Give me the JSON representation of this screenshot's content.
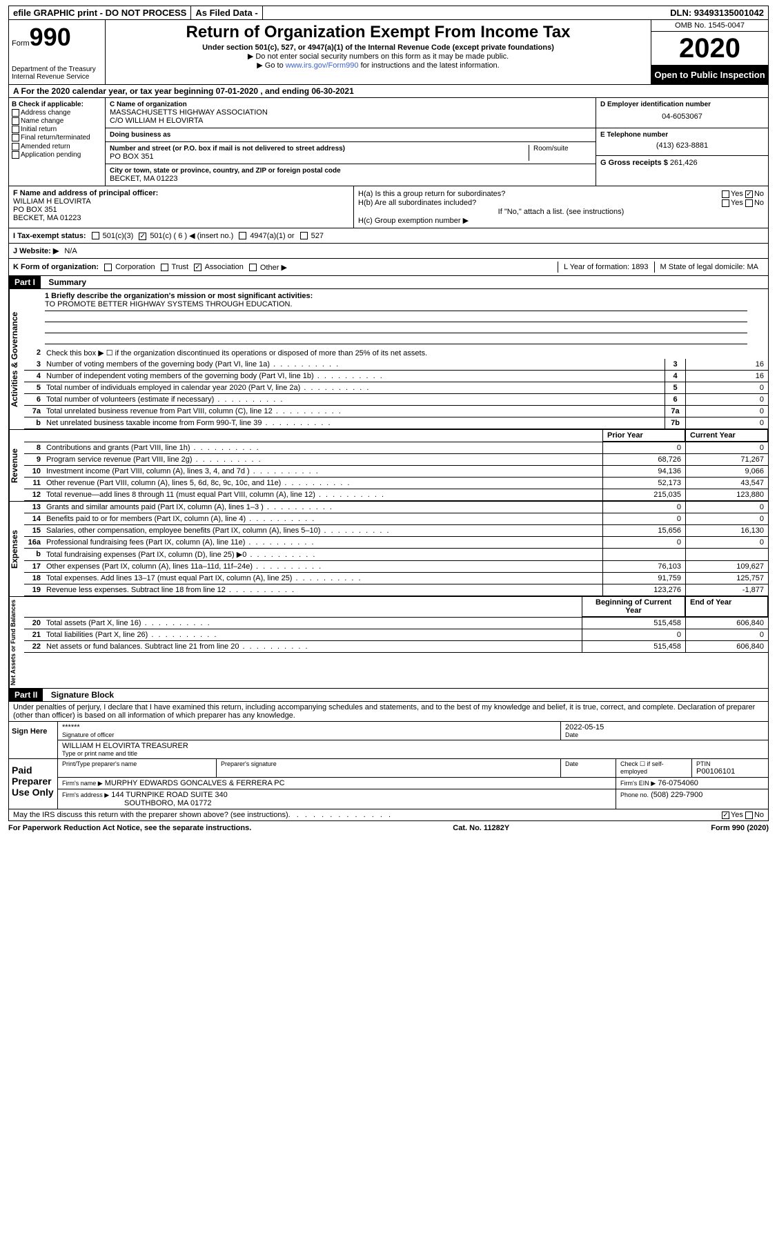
{
  "top": {
    "efile": "efile GRAPHIC print - DO NOT PROCESS",
    "asfiled": "As Filed Data -",
    "dln": "DLN: 93493135001042"
  },
  "header": {
    "form_label": "Form",
    "form_num": "990",
    "dept": "Department of the Treasury\nInternal Revenue Service",
    "title": "Return of Organization Exempt From Income Tax",
    "sub1": "Under section 501(c), 527, or 4947(a)(1) of the Internal Revenue Code (except private foundations)",
    "sub2": "▶ Do not enter social security numbers on this form as it may be made public.",
    "sub3_pre": "▶ Go to ",
    "sub3_link": "www.irs.gov/Form990",
    "sub3_post": " for instructions and the latest information.",
    "omb": "OMB No. 1545-0047",
    "year": "2020",
    "otp": "Open to Public Inspection"
  },
  "a": "A  For the 2020 calendar year, or tax year beginning 07-01-2020  , and ending 06-30-2021",
  "b": {
    "label": "B Check if applicable:",
    "items": [
      "Address change",
      "Name change",
      "Initial return",
      "Final return/terminated",
      "Amended return",
      "Application pending"
    ]
  },
  "c": {
    "label": "C Name of organization",
    "name": "MASSACHUSETTS HIGHWAY ASSOCIATION",
    "co": "C/O WILLIAM H ELOVIRTA",
    "dba_label": "Doing business as",
    "dba": "",
    "street_label": "Number and street (or P.O. box if mail is not delivered to street address)",
    "street": "PO BOX 351",
    "room_label": "Room/suite",
    "city_label": "City or town, state or province, country, and ZIP or foreign postal code",
    "city": "BECKET, MA  01223"
  },
  "d": {
    "label": "D Employer identification number",
    "val": "04-6053067"
  },
  "e": {
    "label": "E Telephone number",
    "val": "(413) 623-8881"
  },
  "g": {
    "label": "G Gross receipts $",
    "val": "261,426"
  },
  "f": {
    "label": "F  Name and address of principal officer:",
    "name": "WILLIAM H ELOVIRTA",
    "street": "PO BOX 351",
    "city": "BECKET, MA  01223"
  },
  "h": {
    "a": "H(a)  Is this a group return for subordinates?",
    "a_yes": "Yes",
    "a_no": "No",
    "b": "H(b)  Are all subordinates included?",
    "b_yes": "Yes",
    "b_no": "No",
    "b_note": "If \"No,\" attach a list. (see instructions)",
    "c": "H(c)  Group exemption number ▶"
  },
  "i": {
    "label": "I  Tax-exempt status:",
    "opts": [
      "501(c)(3)",
      "501(c) ( 6 ) ◀ (insert no.)",
      "4947(a)(1) or",
      "527"
    ],
    "checked": 1
  },
  "j": {
    "label": "J  Website: ▶",
    "val": "N/A"
  },
  "k": {
    "label": "K Form of organization:",
    "opts": [
      "Corporation",
      "Trust",
      "Association",
      "Other ▶"
    ],
    "checked": 2,
    "l": "L Year of formation: 1893",
    "m": "M State of legal domicile: MA"
  },
  "part1": {
    "hdr": "Part I",
    "title": "Summary",
    "q1": "1 Briefly describe the organization's mission or most significant activities:",
    "mission": "TO PROMOTE BETTER HIGHWAY SYSTEMS THROUGH EDUCATION.",
    "q2": "Check this box ▶ ☐ if the organization discontinued its operations or disposed of more than 25% of its net assets.",
    "lines_ag": [
      {
        "n": "3",
        "t": "Number of voting members of the governing body (Part VI, line 1a)",
        "c": "3",
        "v": "16"
      },
      {
        "n": "4",
        "t": "Number of independent voting members of the governing body (Part VI, line 1b)",
        "c": "4",
        "v": "16"
      },
      {
        "n": "5",
        "t": "Total number of individuals employed in calendar year 2020 (Part V, line 2a)",
        "c": "5",
        "v": "0"
      },
      {
        "n": "6",
        "t": "Total number of volunteers (estimate if necessary)",
        "c": "6",
        "v": "0"
      },
      {
        "n": "7a",
        "t": "Total unrelated business revenue from Part VIII, column (C), line 12",
        "c": "7a",
        "v": "0"
      },
      {
        "n": "b",
        "t": "Net unrelated business taxable income from Form 990-T, line 39",
        "c": "7b",
        "v": "0"
      }
    ],
    "col_prior": "Prior Year",
    "col_curr": "Current Year",
    "lines_rev": [
      {
        "n": "8",
        "t": "Contributions and grants (Part VIII, line 1h)",
        "p": "0",
        "c": "0"
      },
      {
        "n": "9",
        "t": "Program service revenue (Part VIII, line 2g)",
        "p": "68,726",
        "c": "71,267"
      },
      {
        "n": "10",
        "t": "Investment income (Part VIII, column (A), lines 3, 4, and 7d )",
        "p": "94,136",
        "c": "9,066"
      },
      {
        "n": "11",
        "t": "Other revenue (Part VIII, column (A), lines 5, 6d, 8c, 9c, 10c, and 11e)",
        "p": "52,173",
        "c": "43,547"
      },
      {
        "n": "12",
        "t": "Total revenue—add lines 8 through 11 (must equal Part VIII, column (A), line 12)",
        "p": "215,035",
        "c": "123,880"
      }
    ],
    "lines_exp": [
      {
        "n": "13",
        "t": "Grants and similar amounts paid (Part IX, column (A), lines 1–3 )",
        "p": "0",
        "c": "0"
      },
      {
        "n": "14",
        "t": "Benefits paid to or for members (Part IX, column (A), line 4)",
        "p": "0",
        "c": "0"
      },
      {
        "n": "15",
        "t": "Salaries, other compensation, employee benefits (Part IX, column (A), lines 5–10)",
        "p": "15,656",
        "c": "16,130"
      },
      {
        "n": "16a",
        "t": "Professional fundraising fees (Part IX, column (A), line 11e)",
        "p": "0",
        "c": "0"
      },
      {
        "n": "b",
        "t": "Total fundraising expenses (Part IX, column (D), line 25) ▶0",
        "p": "",
        "c": ""
      },
      {
        "n": "17",
        "t": "Other expenses (Part IX, column (A), lines 11a–11d, 11f–24e)",
        "p": "76,103",
        "c": "109,627"
      },
      {
        "n": "18",
        "t": "Total expenses. Add lines 13–17 (must equal Part IX, column (A), line 25)",
        "p": "91,759",
        "c": "125,757"
      },
      {
        "n": "19",
        "t": "Revenue less expenses. Subtract line 18 from line 12",
        "p": "123,276",
        "c": "-1,877"
      }
    ],
    "col_beg": "Beginning of Current Year",
    "col_end": "End of Year",
    "lines_na": [
      {
        "n": "20",
        "t": "Total assets (Part X, line 16)",
        "p": "515,458",
        "c": "606,840"
      },
      {
        "n": "21",
        "t": "Total liabilities (Part X, line 26)",
        "p": "0",
        "c": "0"
      },
      {
        "n": "22",
        "t": "Net assets or fund balances. Subtract line 21 from line 20",
        "p": "515,458",
        "c": "606,840"
      }
    ],
    "vtabs": [
      "Activities & Governance",
      "Revenue",
      "Expenses",
      "Net Assets or Fund Balances"
    ]
  },
  "part2": {
    "hdr": "Part II",
    "title": "Signature Block",
    "decl": "Under penalties of perjury, I declare that I have examined this return, including accompanying schedules and statements, and to the best of my knowledge and belief, it is true, correct, and complete. Declaration of preparer (other than officer) is based on all information of which preparer has any knowledge.",
    "sign_here": "Sign Here",
    "sig_stars": "******",
    "sig_officer": "Signature of officer",
    "sig_date": "2022-05-15",
    "sig_date_lbl": "Date",
    "sig_name": "WILLIAM H ELOVIRTA TREASURER",
    "sig_name_lbl": "Type or print name and title",
    "paid": "Paid Preparer Use Only",
    "prep_name_lbl": "Print/Type preparer's name",
    "prep_sig_lbl": "Preparer's signature",
    "prep_date_lbl": "Date",
    "prep_check": "Check ☐ if self-employed",
    "ptin_lbl": "PTIN",
    "ptin": "P00106101",
    "firm_name_lbl": "Firm's name   ▶",
    "firm_name": "MURPHY EDWARDS GONCALVES & FERRERA PC",
    "firm_ein_lbl": "Firm's EIN ▶",
    "firm_ein": "76-0754060",
    "firm_addr_lbl": "Firm's address ▶",
    "firm_addr": "144 TURNPIKE ROAD SUITE 340",
    "firm_city": "SOUTHBORO, MA  01772",
    "phone_lbl": "Phone no.",
    "phone": "(508) 229-7900",
    "discuss": "May the IRS discuss this return with the preparer shown above? (see instructions)",
    "yes": "Yes",
    "no": "No"
  },
  "footer": {
    "left": "For Paperwork Reduction Act Notice, see the separate instructions.",
    "mid": "Cat. No. 11282Y",
    "right": "Form 990 (2020)"
  }
}
